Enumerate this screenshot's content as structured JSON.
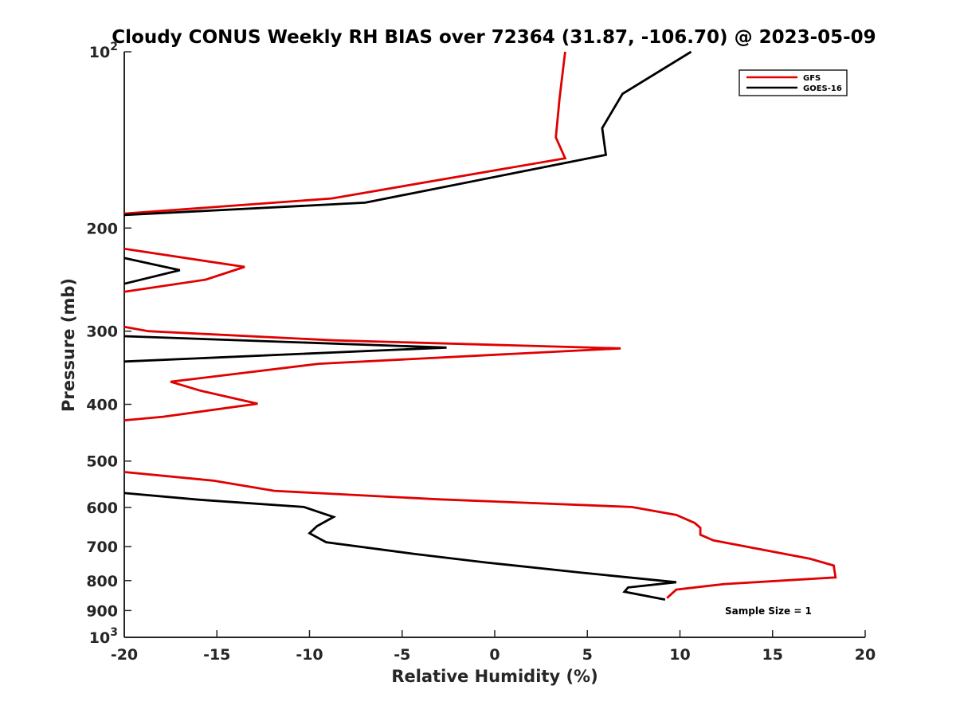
{
  "chart_data": {
    "type": "line",
    "title": "Cloudy CONUS Weekly RH BIAS over 72364 (31.87, -106.70) @ 2023-05-09",
    "xlabel": "Relative Humidity (%)",
    "ylabel": "Pressure (mb)",
    "xlim": [
      -20,
      20
    ],
    "ylim": [
      100,
      1000
    ],
    "y_scale": "log",
    "y_reversed": true,
    "x_ticks": [
      "-20",
      "-15",
      "-10",
      "-5",
      "0",
      "5",
      "10",
      "15",
      "20"
    ],
    "y_ticks": [
      {
        "value": 100,
        "base": "10",
        "exp": "2"
      },
      {
        "value": 200,
        "label": "200"
      },
      {
        "value": 300,
        "label": "300"
      },
      {
        "value": 400,
        "label": "400"
      },
      {
        "value": 500,
        "label": "500"
      },
      {
        "value": 600,
        "label": "600"
      },
      {
        "value": 700,
        "label": "700"
      },
      {
        "value": 800,
        "label": "800"
      },
      {
        "value": 900,
        "label": "900"
      },
      {
        "value": 1000,
        "base": "10",
        "exp": "3"
      }
    ],
    "grid": false,
    "legend_position": "top-right",
    "annotation": "Sample Size = 1",
    "series": [
      {
        "name": "GFS",
        "color": "#e00000",
        "segments": [
          [
            [
              3.8,
              100
            ],
            [
              3.5,
              120
            ],
            [
              3.3,
              140
            ],
            [
              3.8,
              152
            ],
            [
              -8.8,
              178
            ],
            [
              -20,
              189
            ]
          ],
          [
            [
              -20,
              217
            ],
            [
              -13.5,
              233
            ],
            [
              -15.6,
              245
            ],
            [
              -20,
              257
            ]
          ],
          [
            [
              -20,
              295
            ],
            [
              -18.7,
              300
            ],
            [
              -8.7,
              311
            ],
            [
              6.8,
              321
            ],
            [
              -9.5,
              341
            ],
            [
              -17.5,
              366
            ],
            [
              -15.9,
              379
            ],
            [
              -12.8,
              399
            ],
            [
              -17.9,
              420
            ],
            [
              -20,
              426
            ]
          ],
          [
            [
              -20,
              522
            ],
            [
              -15.2,
              540
            ],
            [
              -11.9,
              562
            ],
            [
              -3.1,
              581
            ],
            [
              7.4,
              599
            ],
            [
              9.8,
              618
            ],
            [
              10.8,
              638
            ],
            [
              11.1,
              650
            ],
            [
              11.1,
              668
            ],
            [
              11.8,
              683
            ],
            [
              17.0,
              734
            ],
            [
              18.3,
              754
            ],
            [
              18.4,
              790
            ],
            [
              12.4,
              811
            ],
            [
              9.8,
              829
            ],
            [
              9.3,
              857
            ]
          ]
        ]
      },
      {
        "name": "GOES-16",
        "color": "#000000",
        "segments": [
          [
            [
              10.6,
              100
            ],
            [
              6.9,
              118
            ],
            [
              5.8,
              135
            ],
            [
              6.0,
              150
            ],
            [
              -7.0,
              181
            ],
            [
              -20,
              190
            ]
          ],
          [
            [
              -20,
              225
            ],
            [
              -17.0,
              236
            ],
            [
              -20,
              249
            ]
          ],
          [
            [
              -20,
              306
            ],
            [
              -2.6,
              320
            ],
            [
              -20,
              338
            ]
          ],
          [
            [
              -20,
              567
            ],
            [
              -16.0,
              582
            ],
            [
              -10.3,
              599
            ],
            [
              -8.7,
              623
            ],
            [
              -9.6,
              646
            ],
            [
              -10.0,
              664
            ],
            [
              -9.1,
              688
            ],
            [
              -4.4,
              720
            ],
            [
              -0.5,
              745
            ],
            [
              4.6,
              775
            ],
            [
              9.8,
              805
            ],
            [
              7.2,
              822
            ],
            [
              7.0,
              836
            ],
            [
              9.2,
              862
            ]
          ]
        ]
      }
    ]
  }
}
